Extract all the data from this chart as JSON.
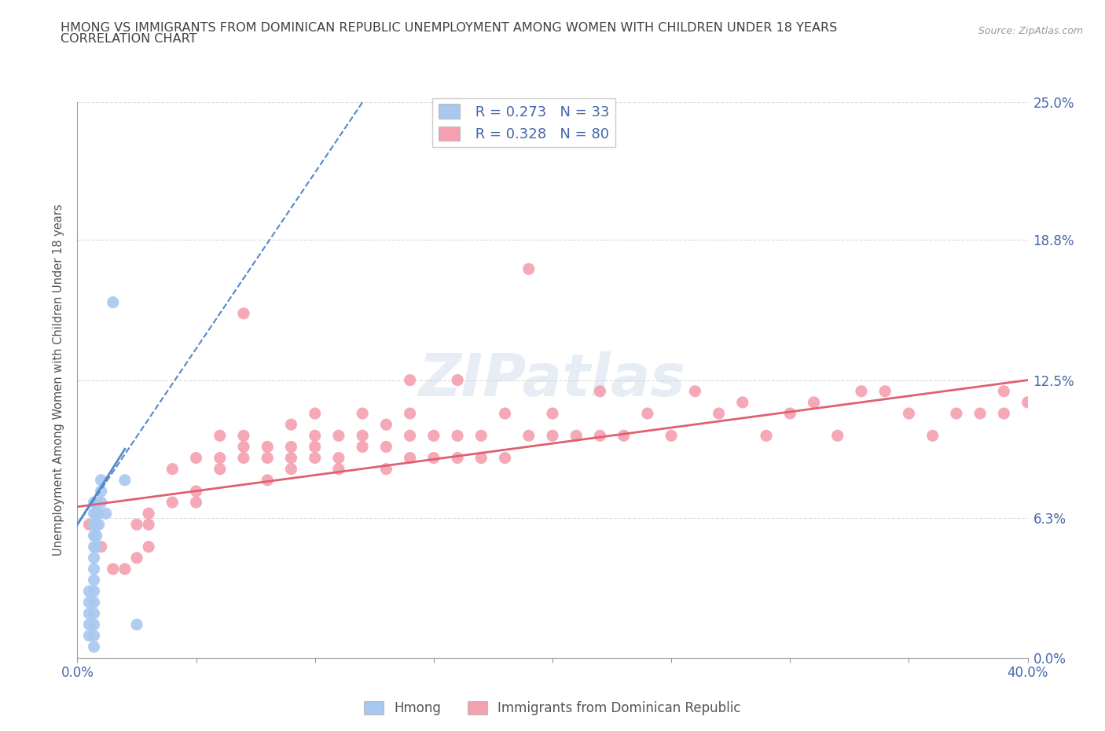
{
  "title_line1": "HMONG VS IMMIGRANTS FROM DOMINICAN REPUBLIC UNEMPLOYMENT AMONG WOMEN WITH CHILDREN UNDER 18 YEARS",
  "title_line2": "CORRELATION CHART",
  "source": "Source: ZipAtlas.com",
  "ylabel": "Unemployment Among Women with Children Under 18 years",
  "xlim": [
    0,
    0.4
  ],
  "ylim": [
    0,
    0.25
  ],
  "ytick_vals": [
    0.0,
    0.063,
    0.125,
    0.188,
    0.25
  ],
  "ytick_labels": [
    "0.0%",
    "6.3%",
    "12.5%",
    "18.8%",
    "25.0%"
  ],
  "hmong_R": 0.273,
  "hmong_N": 33,
  "dr_R": 0.328,
  "dr_N": 80,
  "hmong_color": "#a8c8f0",
  "dr_color": "#f4a0b0",
  "hmong_line_color": "#5588cc",
  "dr_line_color": "#e06070",
  "legend_label_hmong": "Hmong",
  "legend_label_dr": "Immigrants from Dominican Republic",
  "background_color": "#ffffff",
  "grid_color": "#cccccc",
  "title_color": "#404040",
  "axis_label_color": "#555555",
  "tick_color": "#4466aa",
  "hmong_scatter_x": [
    0.005,
    0.005,
    0.005,
    0.005,
    0.005,
    0.007,
    0.007,
    0.007,
    0.007,
    0.007,
    0.007,
    0.007,
    0.007,
    0.007,
    0.007,
    0.007,
    0.007,
    0.007,
    0.007,
    0.008,
    0.008,
    0.008,
    0.008,
    0.008,
    0.009,
    0.009,
    0.01,
    0.01,
    0.01,
    0.012,
    0.015,
    0.02,
    0.025
  ],
  "hmong_scatter_y": [
    0.03,
    0.025,
    0.02,
    0.015,
    0.01,
    0.05,
    0.045,
    0.04,
    0.035,
    0.03,
    0.025,
    0.02,
    0.015,
    0.01,
    0.005,
    0.055,
    0.06,
    0.065,
    0.07,
    0.05,
    0.055,
    0.06,
    0.065,
    0.07,
    0.06,
    0.065,
    0.07,
    0.075,
    0.08,
    0.065,
    0.16,
    0.08,
    0.015
  ],
  "dr_scatter_x": [
    0.005,
    0.01,
    0.015,
    0.02,
    0.025,
    0.025,
    0.03,
    0.03,
    0.03,
    0.04,
    0.04,
    0.05,
    0.05,
    0.05,
    0.06,
    0.06,
    0.06,
    0.07,
    0.07,
    0.07,
    0.07,
    0.08,
    0.08,
    0.08,
    0.09,
    0.09,
    0.09,
    0.09,
    0.1,
    0.1,
    0.1,
    0.1,
    0.11,
    0.11,
    0.11,
    0.12,
    0.12,
    0.12,
    0.13,
    0.13,
    0.13,
    0.14,
    0.14,
    0.14,
    0.14,
    0.15,
    0.15,
    0.16,
    0.16,
    0.16,
    0.17,
    0.17,
    0.18,
    0.18,
    0.19,
    0.19,
    0.2,
    0.2,
    0.21,
    0.22,
    0.22,
    0.23,
    0.24,
    0.25,
    0.26,
    0.27,
    0.28,
    0.29,
    0.3,
    0.31,
    0.32,
    0.33,
    0.34,
    0.35,
    0.36,
    0.37,
    0.38,
    0.39,
    0.39,
    0.4
  ],
  "dr_scatter_y": [
    0.06,
    0.05,
    0.04,
    0.04,
    0.045,
    0.06,
    0.05,
    0.06,
    0.065,
    0.07,
    0.085,
    0.07,
    0.075,
    0.09,
    0.085,
    0.09,
    0.1,
    0.09,
    0.095,
    0.1,
    0.155,
    0.08,
    0.09,
    0.095,
    0.085,
    0.09,
    0.095,
    0.105,
    0.09,
    0.095,
    0.1,
    0.11,
    0.085,
    0.09,
    0.1,
    0.095,
    0.1,
    0.11,
    0.085,
    0.095,
    0.105,
    0.09,
    0.1,
    0.11,
    0.125,
    0.09,
    0.1,
    0.09,
    0.1,
    0.125,
    0.09,
    0.1,
    0.09,
    0.11,
    0.1,
    0.175,
    0.1,
    0.11,
    0.1,
    0.1,
    0.12,
    0.1,
    0.11,
    0.1,
    0.12,
    0.11,
    0.115,
    0.1,
    0.11,
    0.115,
    0.1,
    0.12,
    0.12,
    0.11,
    0.1,
    0.11,
    0.11,
    0.11,
    0.12,
    0.115
  ],
  "hmong_line_x": [
    0.0,
    0.12
  ],
  "hmong_line_y": [
    0.06,
    0.25
  ],
  "dr_line_x": [
    0.0,
    0.4
  ],
  "dr_line_y": [
    0.068,
    0.125
  ]
}
